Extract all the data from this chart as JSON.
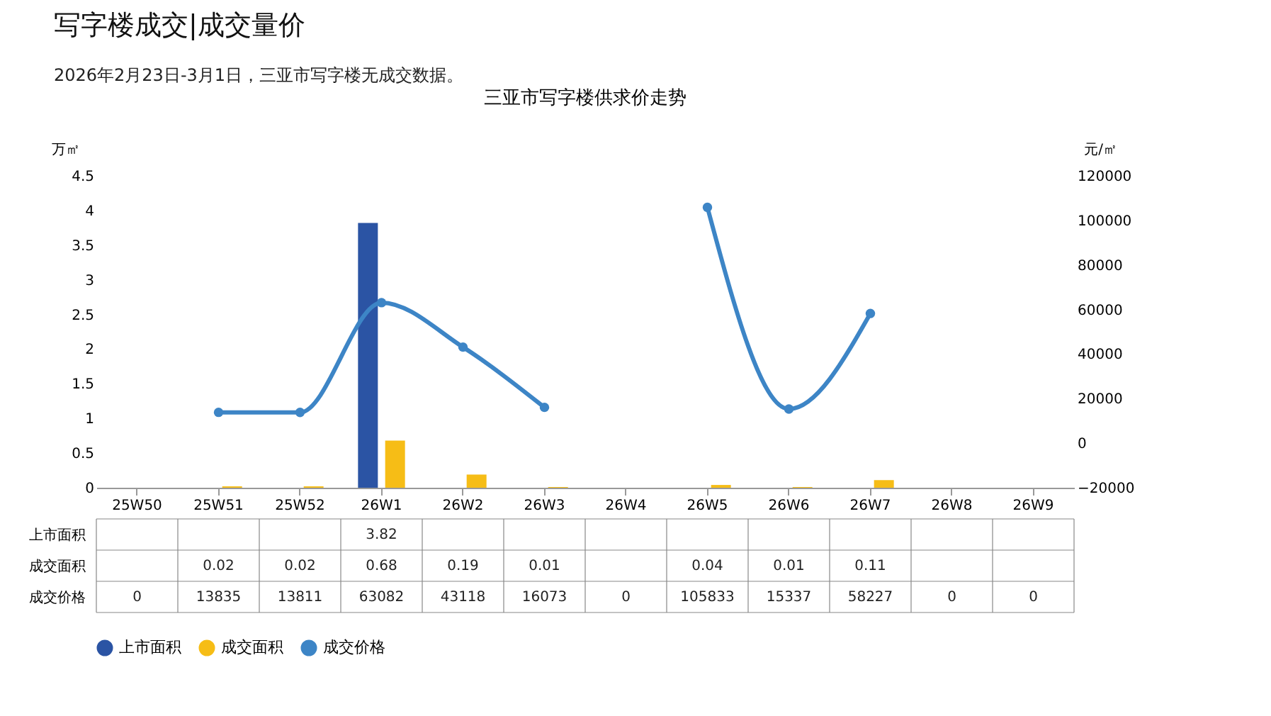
{
  "chart_data": {
    "type": "bar",
    "title": "三亚市写字楼供求价走势",
    "annotations": [
      "写字楼成交|成交量价",
      "2026年2月23日-3月1日，三亚市写字楼无成交数据。"
    ],
    "categories": [
      "25W50",
      "25W51",
      "25W52",
      "26W1",
      "26W2",
      "26W3",
      "26W4",
      "26W5",
      "26W6",
      "26W7",
      "26W8",
      "26W9"
    ],
    "ylabel": "万㎡",
    "y2label": "元/㎡",
    "ylim": [
      0,
      4.5
    ],
    "yticks": [
      0,
      0.5,
      1,
      1.5,
      2,
      2.5,
      3,
      3.5,
      4,
      4.5
    ],
    "y2lim": [
      -20000,
      120000
    ],
    "y2ticks": [
      -20000,
      0,
      20000,
      40000,
      60000,
      80000,
      100000,
      120000
    ],
    "series": [
      {
        "name": "上市面积",
        "color": "#2b54a4",
        "values": [
          null,
          null,
          null,
          3.82,
          null,
          null,
          null,
          null,
          null,
          null,
          null,
          null
        ]
      },
      {
        "name": "成交面积",
        "color": "#f6bd16",
        "values": [
          null,
          0.02,
          0.02,
          0.68,
          0.19,
          0.01,
          null,
          0.04,
          0.01,
          0.11,
          null,
          null
        ]
      },
      {
        "name": "成交价格",
        "color": "#3d85c6",
        "type": "line",
        "axis": "y2",
        "marker": "circle",
        "values": [
          null,
          13835,
          13811,
          63082,
          43118,
          16073,
          null,
          105833,
          15337,
          58227,
          null,
          null
        ],
        "value_labels": [
          "0",
          "13835",
          "13811",
          "63082",
          "43118",
          "16073",
          "0",
          "105833",
          "15337",
          "58227",
          "0",
          "0"
        ]
      }
    ],
    "data_labels": true,
    "legend": "bottom",
    "grid": false
  }
}
